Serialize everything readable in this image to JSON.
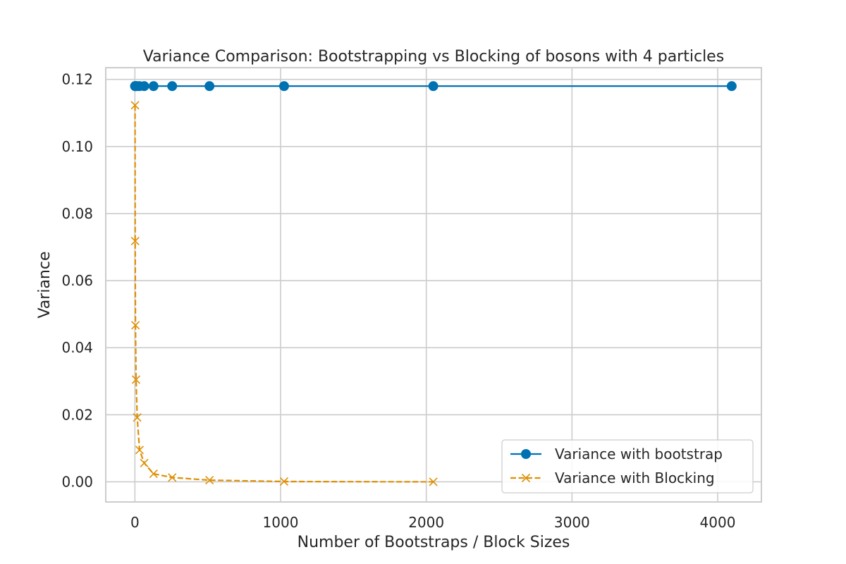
{
  "chart_data": {
    "type": "line",
    "title": "Variance Comparison: Bootstrapping vs Blocking of bosons with 4 particles",
    "xlabel": "Number of Bootstraps / Block Sizes",
    "ylabel": "Variance",
    "xlim": [
      -200,
      4300
    ],
    "ylim": [
      -0.006,
      0.1235
    ],
    "xticks": [
      0,
      1000,
      2000,
      3000,
      4000
    ],
    "xtick_labels": [
      "0",
      "1000",
      "2000",
      "3000",
      "4000"
    ],
    "yticks": [
      0.0,
      0.02,
      0.04,
      0.06,
      0.08,
      0.1,
      0.12
    ],
    "ytick_labels": [
      "0.00",
      "0.02",
      "0.04",
      "0.06",
      "0.08",
      "0.10",
      "0.12"
    ],
    "grid": true,
    "legend_position": "lower-right",
    "series": [
      {
        "name": "Variance with bootstrap",
        "color": "#0072b2",
        "linestyle": "solid",
        "marker": "circle",
        "x": [
          1,
          2,
          4,
          8,
          16,
          32,
          64,
          128,
          256,
          512,
          1024,
          2048,
          4096
        ],
        "y": [
          0.118,
          0.118,
          0.118,
          0.118,
          0.118,
          0.118,
          0.118,
          0.118,
          0.118,
          0.118,
          0.118,
          0.118,
          0.118
        ]
      },
      {
        "name": "Variance with Blocking",
        "color": "#de8f05",
        "linestyle": "dashed",
        "marker": "x",
        "x": [
          1,
          2,
          4,
          8,
          16,
          32,
          64,
          128,
          256,
          512,
          1024,
          2048
        ],
        "y": [
          0.1123,
          0.0718,
          0.0467,
          0.0305,
          0.0192,
          0.0095,
          0.0056,
          0.0024,
          0.0013,
          0.0005,
          0.0001,
          0.0
        ]
      }
    ]
  }
}
